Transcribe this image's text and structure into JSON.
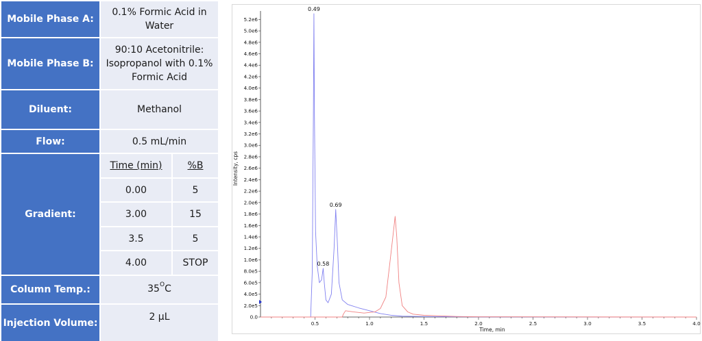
{
  "method_table": {
    "mobile_phase_a": {
      "label": "Mobile Phase A:",
      "value": "0.1% Formic Acid in Water"
    },
    "mobile_phase_b": {
      "label": "Mobile Phase B:",
      "value": "90:10 Acetonitrile: Isopropanol with 0.1% Formic Acid"
    },
    "diluent": {
      "label": "Diluent:",
      "value": "Methanol"
    },
    "flow": {
      "label": "Flow:",
      "value": "0.5 mL/min"
    },
    "gradient": {
      "label": "Gradient:",
      "headers": [
        "Time (min)",
        "%B"
      ],
      "rows": [
        [
          "0.00",
          "5"
        ],
        [
          "3.00",
          "15"
        ],
        [
          "3.5",
          "5"
        ],
        [
          "4.00",
          "STOP"
        ]
      ]
    },
    "column_temp": {
      "label": "Column Temp.:",
      "value": "35",
      "unit": "C",
      "degree": "O"
    },
    "injection_volume": {
      "label": "Injection Volume:",
      "value": "2 µL"
    }
  },
  "chart_data": {
    "type": "line",
    "title": "",
    "xlabel": "Time, min",
    "ylabel": "Intensity, cps",
    "xlim": [
      0.0,
      4.0
    ],
    "ylim": [
      0.0,
      5300000.0
    ],
    "x_ticks": [
      "0.5",
      "1.0",
      "1.5",
      "2.0",
      "2.5",
      "3.0",
      "3.5",
      "4.0"
    ],
    "y_ticks": [
      "0.0",
      "2.0e5",
      "4.0e5",
      "6.0e5",
      "8.0e5",
      "1.0e6",
      "1.2e6",
      "1.4e6",
      "1.6e6",
      "1.8e6",
      "2.0e6",
      "2.2e6",
      "2.4e6",
      "2.6e6",
      "2.8e6",
      "3.0e6",
      "3.2e6",
      "3.4e6",
      "3.6e6",
      "3.8e6",
      "4.0e6",
      "4.2e6",
      "4.4e6",
      "4.6e6",
      "4.8e6",
      "5.0e6",
      "5.2e6"
    ],
    "series": [
      {
        "color": "#8080f0",
        "points": [
          [
            0.0,
            0
          ],
          [
            0.46,
            0
          ],
          [
            0.475,
            800000.0
          ],
          [
            0.485,
            3500000.0
          ],
          [
            0.49,
            5300000.0
          ],
          [
            0.495,
            3500000.0
          ],
          [
            0.505,
            1500000.0
          ],
          [
            0.52,
            900000.0
          ],
          [
            0.54,
            600000.0
          ],
          [
            0.56,
            650000.0
          ],
          [
            0.575,
            850000.0
          ],
          [
            0.585,
            600000.0
          ],
          [
            0.6,
            300000.0
          ],
          [
            0.62,
            250000.0
          ],
          [
            0.65,
            400000.0
          ],
          [
            0.675,
            1200000.0
          ],
          [
            0.69,
            1880000.0
          ],
          [
            0.705,
            1300000.0
          ],
          [
            0.72,
            600000.0
          ],
          [
            0.75,
            300000.0
          ],
          [
            0.8,
            220000.0
          ],
          [
            0.9,
            160000.0
          ],
          [
            1.0,
            110000.0
          ],
          [
            1.1,
            60000.0
          ],
          [
            1.2,
            30000.0
          ],
          [
            1.3,
            15000.0
          ],
          [
            1.5,
            8000.0
          ],
          [
            2.0,
            3000.0
          ],
          [
            4.0,
            0
          ]
        ]
      },
      {
        "color": "#f08080",
        "points": [
          [
            0.0,
            0
          ],
          [
            0.75,
            0
          ],
          [
            0.76,
            50000.0
          ],
          [
            0.78,
            110000.0
          ],
          [
            0.85,
            90000.0
          ],
          [
            0.95,
            70000.0
          ],
          [
            1.05,
            90000.0
          ],
          [
            1.1,
            150000.0
          ],
          [
            1.15,
            350000.0
          ],
          [
            1.19,
            1000000.0
          ],
          [
            1.22,
            1500000.0
          ],
          [
            1.235,
            1760000.0
          ],
          [
            1.25,
            1400000.0
          ],
          [
            1.27,
            600000.0
          ],
          [
            1.3,
            200000.0
          ],
          [
            1.35,
            90000.0
          ],
          [
            1.4,
            50000.0
          ],
          [
            1.5,
            30000.0
          ],
          [
            1.8,
            10000.0
          ],
          [
            2.0,
            4000.0
          ],
          [
            4.0,
            0
          ]
        ]
      }
    ],
    "annotations": [
      {
        "text": "0.49",
        "x": 0.49,
        "y": 5300000.0
      },
      {
        "text": "0.58",
        "x": 0.575,
        "y": 850000.0
      },
      {
        "text": "0.69",
        "x": 0.69,
        "y": 1880000.0
      }
    ],
    "grid": false
  }
}
